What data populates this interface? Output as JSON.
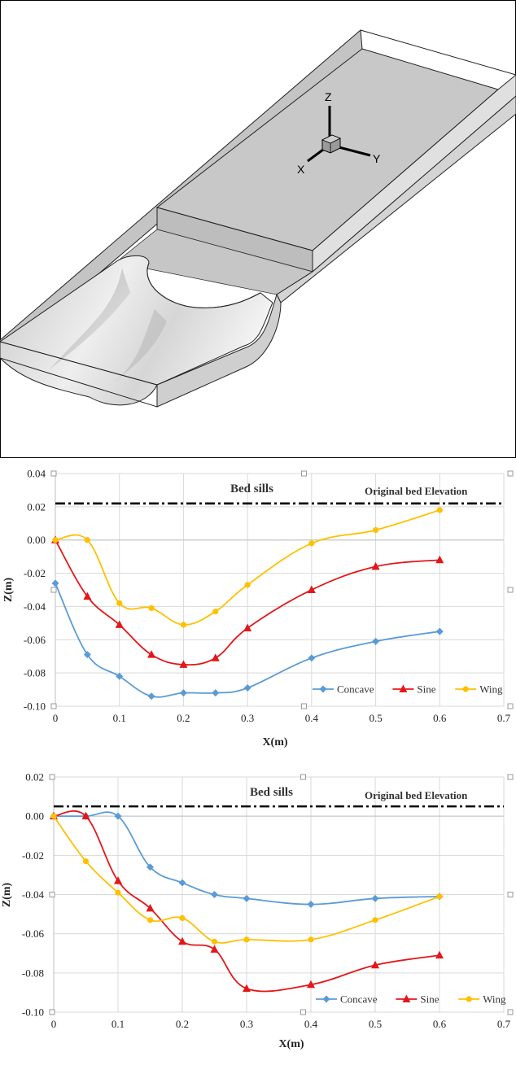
{
  "figure_3d": {
    "axis_labels": {
      "z": "Z",
      "x": "X",
      "y": "Y"
    }
  },
  "colors": {
    "concave": "#5B9BD5",
    "sine": "#E3171A",
    "wing": "#FFC000",
    "reference_line": "#000000"
  },
  "chart_data": [
    {
      "type": "line",
      "xlabel": "X(m)",
      "ylabel": "Z(m)",
      "xlim": [
        0,
        0.7
      ],
      "ylim": [
        -0.1,
        0.04
      ],
      "xticks": [
        "0",
        "0.1",
        "0.2",
        "0.3",
        "0.4",
        "0.5",
        "0.6",
        "0.7"
      ],
      "yticks": [
        "0.04",
        "0.02",
        "0.00",
        "-0.02",
        "-0.04",
        "-0.06",
        "-0.08",
        "-0.10"
      ],
      "grid": true,
      "legend_position": "bottom-right",
      "annotations": [
        "Bed sills",
        "Original bed Elevation"
      ],
      "reference_line": {
        "y": 0.022,
        "style": "dash-dot"
      },
      "series": [
        {
          "name": "Concave",
          "color": "#5B9BD5",
          "marker": "diamond",
          "x": [
            0,
            0.05,
            0.1,
            0.15,
            0.2,
            0.25,
            0.3,
            0.4,
            0.5,
            0.6
          ],
          "y": [
            -0.026,
            -0.069,
            -0.082,
            -0.094,
            -0.092,
            -0.092,
            -0.089,
            -0.071,
            -0.061,
            -0.055
          ]
        },
        {
          "name": "Sine",
          "color": "#E3171A",
          "marker": "triangle",
          "x": [
            0,
            0.05,
            0.1,
            0.15,
            0.2,
            0.25,
            0.3,
            0.4,
            0.5,
            0.6
          ],
          "y": [
            0.0,
            -0.034,
            -0.051,
            -0.069,
            -0.075,
            -0.071,
            -0.053,
            -0.03,
            -0.016,
            -0.012
          ]
        },
        {
          "name": "Wing",
          "color": "#FFC000",
          "marker": "circle",
          "x": [
            0,
            0.05,
            0.1,
            0.15,
            0.2,
            0.25,
            0.3,
            0.4,
            0.5,
            0.6
          ],
          "y": [
            0.0,
            0.0,
            -0.038,
            -0.041,
            -0.051,
            -0.043,
            -0.027,
            -0.002,
            0.006,
            0.018
          ]
        }
      ]
    },
    {
      "type": "line",
      "xlabel": "X(m)",
      "ylabel": "Z(m)",
      "xlim": [
        0,
        0.7
      ],
      "ylim": [
        -0.1,
        0.02
      ],
      "xticks": [
        "0",
        "0.1",
        "0.2",
        "0.3",
        "0.4",
        "0.5",
        "0.6",
        "0.7"
      ],
      "yticks": [
        "0.02",
        "0.00",
        "-0.02",
        "-0.04",
        "-0.06",
        "-0.08",
        "-0.10"
      ],
      "grid": true,
      "legend_position": "bottom-right",
      "annotations": [
        "Bed sills",
        "Original bed Elevation"
      ],
      "reference_line": {
        "y": 0.005,
        "style": "dash-dot"
      },
      "series": [
        {
          "name": "Concave",
          "color": "#5B9BD5",
          "marker": "diamond",
          "x": [
            0,
            0.05,
            0.1,
            0.15,
            0.2,
            0.25,
            0.3,
            0.4,
            0.5,
            0.6
          ],
          "y": [
            0.0,
            0.0,
            0.0,
            -0.026,
            -0.034,
            -0.04,
            -0.042,
            -0.045,
            -0.042,
            -0.041
          ]
        },
        {
          "name": "Sine",
          "color": "#E3171A",
          "marker": "triangle",
          "x": [
            0,
            0.05,
            0.1,
            0.15,
            0.2,
            0.25,
            0.3,
            0.4,
            0.5,
            0.6
          ],
          "y": [
            0.0,
            0.0,
            -0.033,
            -0.047,
            -0.064,
            -0.068,
            -0.088,
            -0.086,
            -0.076,
            -0.071
          ]
        },
        {
          "name": "Wing",
          "color": "#FFC000",
          "marker": "circle",
          "x": [
            0,
            0.05,
            0.1,
            0.15,
            0.2,
            0.25,
            0.3,
            0.4,
            0.5,
            0.6
          ],
          "y": [
            0.0,
            -0.023,
            -0.039,
            -0.053,
            -0.052,
            -0.064,
            -0.063,
            -0.063,
            -0.053,
            -0.041
          ]
        }
      ]
    }
  ]
}
